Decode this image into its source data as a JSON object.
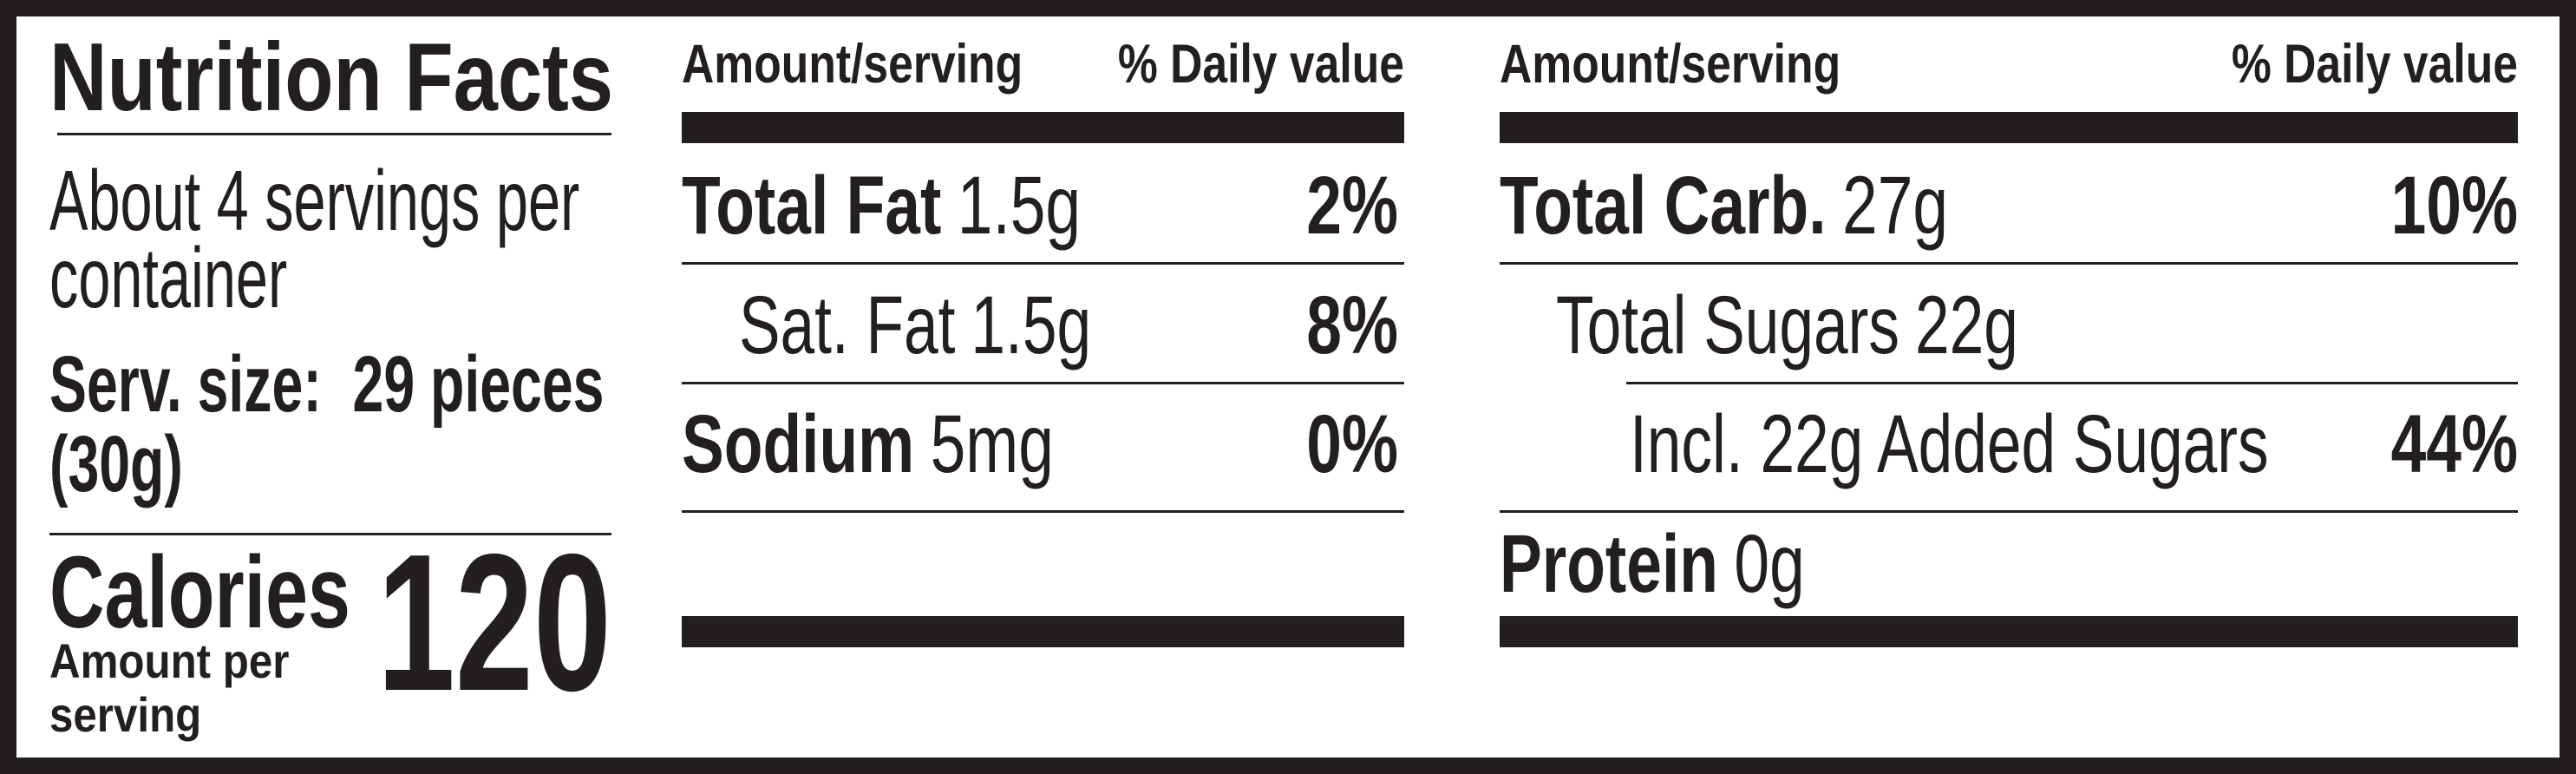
{
  "title": "Nutrition Facts",
  "servings": [
    "About 4 servings per",
    "container"
  ],
  "serving_size": [
    "Serv. size:  29 pieces",
    "(30g)"
  ],
  "calories": {
    "label": "Calories",
    "note": [
      "Amount per",
      "serving"
    ],
    "value": 120
  },
  "columns": [
    {
      "header": [
        "Amount/serving",
        "% Daily value"
      ],
      "rows": [
        {
          "nutrient": "Total Fat",
          "amount": "1.5g",
          "daily_value": "2%"
        },
        {
          "nutrient": "Sat. Fat",
          "amount": "1.5g",
          "daily_value": "8%"
        },
        {
          "nutrient": "Sodium",
          "amount": "5mg",
          "daily_value": "0%"
        }
      ]
    },
    {
      "header": [
        "Amount/serving",
        "% Daily value"
      ],
      "rows": [
        {
          "nutrient": "Total Carb.",
          "amount": "27g",
          "daily_value": "10%"
        },
        {
          "nutrient": "Total Sugars",
          "amount": "22g"
        },
        {
          "nutrient": "Incl. 22g Added Sugars",
          "daily_value": "44%"
        },
        {
          "nutrient": "Protein",
          "amount": "0g"
        }
      ]
    }
  ]
}
